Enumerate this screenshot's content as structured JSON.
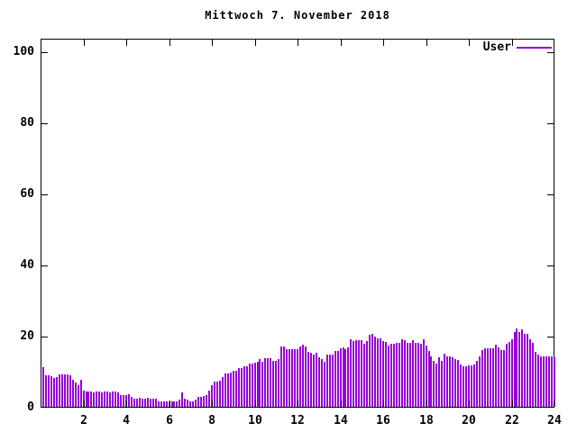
{
  "title": "Mittwoch 7. November 2018",
  "legend": {
    "label": "User"
  },
  "colors": {
    "series": "#9400d3",
    "axis": "#000000",
    "background": "#ffffff",
    "text": "#000000"
  },
  "chart_data": {
    "type": "bar",
    "title": "Mittwoch 7. November 2018",
    "xlabel": "",
    "ylabel": "",
    "xlim": [
      0,
      24
    ],
    "ylim": [
      0,
      103.8
    ],
    "xticks": [
      2,
      4,
      6,
      8,
      10,
      12,
      14,
      16,
      18,
      20,
      22,
      24
    ],
    "yticks": [
      0,
      20,
      40,
      60,
      80,
      100
    ],
    "grid": false,
    "legend_position": "top-right",
    "points_per_hour": 8,
    "x_start_hour": 0,
    "x_end_hour": 24,
    "series": [
      {
        "name": "User",
        "color": "#9400d3",
        "values": [
          11.1,
          8.9,
          8.9,
          8.6,
          8.0,
          8.4,
          9.1,
          9.1,
          9.1,
          9.1,
          8.9,
          7.6,
          6.8,
          6.1,
          7.6,
          4.6,
          4.2,
          4.2,
          4.3,
          4.1,
          4.2,
          4.2,
          4.1,
          4.2,
          4.2,
          4.1,
          4.2,
          4.2,
          4.1,
          3.4,
          3.4,
          3.3,
          3.5,
          2.7,
          2.4,
          2.4,
          2.5,
          2.4,
          2.4,
          2.5,
          2.4,
          2.4,
          2.2,
          1.6,
          1.5,
          1.6,
          1.4,
          1.5,
          1.5,
          1.6,
          1.5,
          2.0,
          4.1,
          2.4,
          2.0,
          1.6,
          1.6,
          2.0,
          2.7,
          2.7,
          3.0,
          3.3,
          4.6,
          6.1,
          7.2,
          7.2,
          7.4,
          8.4,
          9.3,
          9.3,
          9.5,
          10.1,
          10.1,
          11.0,
          11.0,
          11.4,
          11.4,
          12.2,
          12.2,
          12.4,
          12.7,
          13.5,
          12.7,
          13.7,
          13.7,
          13.6,
          13.0,
          13.0,
          13.4,
          17.0,
          17.0,
          16.1,
          16.1,
          16.1,
          16.1,
          16.1,
          17.0,
          17.5,
          17.0,
          15.5,
          15.1,
          14.7,
          15.1,
          13.8,
          13.4,
          12.6,
          14.7,
          14.7,
          14.7,
          15.8,
          15.8,
          16.4,
          16.6,
          16.2,
          16.8,
          18.9,
          18.5,
          18.7,
          18.7,
          18.7,
          17.6,
          18.5,
          20.2,
          20.4,
          19.7,
          19.3,
          19.3,
          18.5,
          18.2,
          17.2,
          17.6,
          17.6,
          18.1,
          18.1,
          19.1,
          18.7,
          17.9,
          17.9,
          18.7,
          17.9,
          17.9,
          17.6,
          19.1,
          17.2,
          15.7,
          14.3,
          13.0,
          12.2,
          14.0,
          13.0,
          14.9,
          14.3,
          14.3,
          13.8,
          13.4,
          13.2,
          12.0,
          11.5,
          11.5,
          11.7,
          11.7,
          11.9,
          13.0,
          14.1,
          15.9,
          16.4,
          16.4,
          16.4,
          16.4,
          17.5,
          16.8,
          15.9,
          15.9,
          17.8,
          18.3,
          18.9,
          21.0,
          22.0,
          21.0,
          21.7,
          20.6,
          20.6,
          18.9,
          18.1,
          15.5,
          14.7,
          14.2,
          14.2,
          14.1,
          14.2,
          14.2,
          14.0
        ]
      }
    ]
  }
}
